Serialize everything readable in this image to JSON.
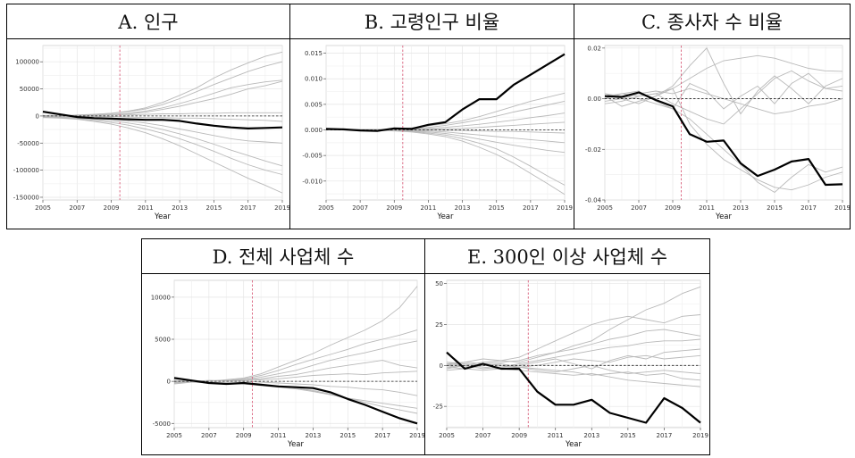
{
  "panels": [
    {
      "id": "A",
      "title": "A. 인구"
    },
    {
      "id": "B",
      "title": "B. 고령인구 비율"
    },
    {
      "id": "C",
      "title": "C. 종사자 수 비율"
    },
    {
      "id": "D",
      "title": "D. 전체 사업체 수"
    },
    {
      "id": "E",
      "title": "E. 300인 이상 사업체 수"
    }
  ],
  "chart_data": [
    {
      "type": "line",
      "title": "A. 인구",
      "xlabel": "Year",
      "ylabel": "",
      "xlim": [
        2005,
        2019
      ],
      "ylim": [
        -155000,
        130000
      ],
      "xticks": [
        2005,
        2007,
        2009,
        2011,
        2013,
        2015,
        2017,
        2019
      ],
      "yticks": [
        100000,
        50000,
        0,
        -50000,
        -100000,
        -150000
      ],
      "ytick_labels": [
        "100000",
        "50000",
        "0",
        "-50000",
        "-100000",
        "-150000"
      ],
      "vline": 2009.5,
      "hline": 0,
      "x": [
        2005,
        2006,
        2007,
        2008,
        2009,
        2010,
        2011,
        2012,
        2013,
        2014,
        2015,
        2016,
        2017,
        2018,
        2019
      ],
      "main": [
        8000,
        3000,
        -2000,
        -4000,
        -5000,
        -6000,
        -7000,
        -7000,
        -9000,
        -14000,
        -18000,
        -21000,
        -23000,
        -22000,
        -21000
      ],
      "others": [
        [
          -3000,
          -1000,
          2000,
          3000,
          5000,
          9000,
          15000,
          25000,
          38000,
          52000,
          70000,
          85000,
          98000,
          110000,
          118000
        ],
        [
          -2000,
          -1000,
          1000,
          3000,
          5000,
          8000,
          13000,
          21000,
          32000,
          45000,
          58000,
          70000,
          82000,
          92000,
          100000
        ],
        [
          -1000,
          0,
          1000,
          2000,
          3000,
          5000,
          9000,
          15000,
          23000,
          32000,
          42000,
          52000,
          58000,
          63000,
          66000
        ],
        [
          0,
          1000,
          1000,
          2000,
          3000,
          4000,
          7000,
          12000,
          18000,
          25000,
          32000,
          40000,
          50000,
          56000,
          64000
        ],
        [
          1000,
          1000,
          1000,
          1000,
          2000,
          2000,
          3000,
          4000,
          4000,
          5000,
          5000,
          6000,
          6000,
          6000,
          6000
        ],
        [
          0,
          0,
          -1000,
          -1000,
          -1000,
          -2000,
          -3000,
          -3000,
          -4000,
          -4000,
          -5000,
          -6000,
          -7000,
          -8000,
          -10000
        ],
        [
          -2000,
          -2000,
          -3000,
          -4000,
          -6000,
          -9000,
          -13000,
          -18000,
          -24000,
          -30000,
          -36000,
          -42000,
          -46000,
          -48000,
          -50000
        ],
        [
          -1000,
          -2000,
          -4000,
          -6000,
          -9000,
          -13000,
          -18000,
          -25000,
          -33000,
          -42000,
          -52000,
          -63000,
          -73000,
          -83000,
          -92000
        ],
        [
          -2000,
          -3000,
          -5000,
          -8000,
          -12000,
          -17000,
          -24000,
          -32000,
          -42000,
          -53000,
          -65000,
          -78000,
          -90000,
          -100000,
          -108000
        ],
        [
          -3000,
          -4000,
          -6000,
          -10000,
          -15000,
          -22000,
          -31000,
          -42000,
          -55000,
          -70000,
          -85000,
          -100000,
          -115000,
          -128000,
          -142000
        ]
      ]
    },
    {
      "type": "line",
      "title": "B. 고령인구 비율",
      "xlabel": "Year",
      "ylabel": "",
      "xlim": [
        2005,
        2019
      ],
      "ylim": [
        -0.0137,
        0.0165
      ],
      "xticks": [
        2005,
        2007,
        2009,
        2011,
        2013,
        2015,
        2017,
        2019
      ],
      "yticks": [
        0.015,
        0.01,
        0.005,
        0,
        -0.005,
        -0.01
      ],
      "ytick_labels": [
        "0.015",
        "0.010",
        "0.005",
        "0.000",
        "-0.005",
        "-0.010"
      ],
      "vline": 2009.5,
      "hline": 0,
      "x": [
        2005,
        2006,
        2007,
        2008,
        2009,
        2010,
        2011,
        2012,
        2013,
        2014,
        2015,
        2016,
        2017,
        2018,
        2019
      ],
      "main": [
        0.0002,
        0.0001,
        -0.0001,
        -0.0002,
        0.0003,
        0.0002,
        0.001,
        0.0015,
        0.004,
        0.006,
        0.006,
        0.0088,
        0.0108,
        0.0128,
        0.0148
      ],
      "others": [
        [
          0.0001,
          0.0001,
          0.0001,
          0.0001,
          0.0002,
          0.0004,
          0.0008,
          0.0012,
          0.0018,
          0.0026,
          0.0036,
          0.0046,
          0.0056,
          0.0064,
          0.0072
        ],
        [
          0.0001,
          0.0001,
          0,
          0,
          0.0001,
          0.0002,
          0.0005,
          0.0009,
          0.0014,
          0.002,
          0.0027,
          0.0035,
          0.0042,
          0.0049,
          0.0056
        ],
        [
          0.0001,
          0,
          0,
          0,
          0.0001,
          0.0001,
          0.0003,
          0.0005,
          0.0008,
          0.0011,
          0.0015,
          0.0019,
          0.0024,
          0.0028,
          0.0033
        ],
        [
          0,
          0,
          0,
          0,
          0,
          0,
          0.0001,
          0.0002,
          0.0003,
          0.0005,
          0.0007,
          0.0009,
          0.0011,
          0.0013,
          0.0015
        ],
        [
          0.0001,
          0.0001,
          0.0001,
          0,
          0,
          0,
          0,
          -0.0001,
          -0.0001,
          -0.0002,
          -0.0003,
          -0.0003,
          -0.0004,
          -0.0005,
          -0.0006
        ],
        [
          0,
          0,
          0,
          0,
          0,
          -0.0001,
          -0.0002,
          -0.0004,
          -0.0007,
          -0.001,
          -0.0013,
          -0.0016,
          -0.0019,
          -0.0022,
          -0.0025
        ],
        [
          0,
          0,
          0,
          0,
          -0.0001,
          -0.0002,
          -0.0004,
          -0.0007,
          -0.0012,
          -0.0018,
          -0.0024,
          -0.003,
          -0.0035,
          -0.004,
          -0.0044
        ],
        [
          0,
          0,
          0,
          0,
          -0.0001,
          -0.0003,
          -0.0006,
          -0.001,
          -0.0017,
          -0.0026,
          -0.0037,
          -0.0053,
          -0.0071,
          -0.009,
          -0.0108
        ],
        [
          0,
          0,
          0,
          -0.0001,
          -0.0002,
          -0.0004,
          -0.0008,
          -0.0013,
          -0.0022,
          -0.0034,
          -0.0048,
          -0.0065,
          -0.0085,
          -0.0105,
          -0.0126
        ]
      ]
    },
    {
      "type": "line",
      "title": "C. 종사자 수 비율",
      "xlabel": "Year",
      "ylabel": "",
      "xlim": [
        2005,
        2019
      ],
      "ylim": [
        -0.04,
        0.021
      ],
      "xticks": [
        2005,
        2007,
        2009,
        2011,
        2013,
        2015,
        2017,
        2019
      ],
      "yticks": [
        0.02,
        0,
        -0.02,
        -0.04
      ],
      "ytick_labels": [
        "0.02",
        "0.00",
        "-0.02",
        "-0.04"
      ],
      "vline": 2009.5,
      "hline": 0,
      "x": [
        2005,
        2006,
        2007,
        2008,
        2009,
        2010,
        2011,
        2012,
        2013,
        2014,
        2015,
        2016,
        2017,
        2018,
        2019
      ],
      "main": [
        0.001,
        0.0007,
        0.0025,
        -0.0005,
        -0.003,
        -0.014,
        -0.017,
        -0.0165,
        -0.0255,
        -0.0305,
        -0.028,
        -0.0248,
        -0.0238,
        -0.034,
        -0.0338
      ],
      "others": [
        [
          0.001,
          0.002,
          0.001,
          0.002,
          0.004,
          0.008,
          0.012,
          0.015,
          0.016,
          0.017,
          0.016,
          0.014,
          0.012,
          0.011,
          0.0108
        ],
        [
          0.002,
          0,
          -0.002,
          0.001,
          0.005,
          0.013,
          0.02,
          0.006,
          -0.006,
          0.003,
          0.009,
          0.004,
          -0.002,
          0.005,
          0.008
        ],
        [
          0,
          0.002,
          0.003,
          -0.001,
          -0.004,
          0.006,
          0.003,
          -0.004,
          0.001,
          0.005,
          -0.002,
          0.006,
          0.01,
          0.004,
          0.005
        ],
        [
          -0.002,
          -0.001,
          0.001,
          0.002,
          -0.002,
          -0.005,
          -0.008,
          -0.01,
          -0.004,
          0.002,
          0.008,
          0.011,
          0.007,
          0.004,
          0.003
        ],
        [
          0.001,
          -0.003,
          -0.001,
          0.001,
          0.004,
          -0.01,
          -0.018,
          -0.024,
          -0.028,
          -0.032,
          -0.035,
          -0.036,
          -0.034,
          -0.031,
          -0.029
        ],
        [
          0.002,
          0.001,
          0,
          -0.002,
          -0.004,
          -0.008,
          -0.014,
          -0.02,
          -0.026,
          -0.033,
          -0.037,
          -0.031,
          -0.026,
          -0.029,
          -0.027
        ],
        [
          -0.001,
          0,
          0.002,
          0.003,
          0.002,
          0.004,
          0.002,
          0,
          -0.002,
          -0.004,
          -0.006,
          -0.005,
          -0.003,
          -0.002,
          0
        ]
      ]
    },
    {
      "type": "line",
      "title": "D. 전체 사업체 수",
      "xlabel": "Year",
      "ylabel": "",
      "xlim": [
        2005,
        2019
      ],
      "ylim": [
        -5500,
        12000
      ],
      "xticks": [
        2005,
        2007,
        2009,
        2011,
        2013,
        2015,
        2017,
        2019
      ],
      "yticks": [
        10000,
        5000,
        0,
        -5000
      ],
      "ytick_labels": [
        "10000",
        "5000",
        "0",
        "-5000"
      ],
      "vline": 2009.5,
      "hline": 0,
      "x": [
        2005,
        2006,
        2007,
        2008,
        2009,
        2010,
        2011,
        2012,
        2013,
        2014,
        2015,
        2016,
        2017,
        2018,
        2019
      ],
      "main": [
        400,
        100,
        -200,
        -300,
        -200,
        -400,
        -600,
        -700,
        -800,
        -1300,
        -2100,
        -2800,
        -3600,
        -4400,
        -5000
      ],
      "others": [
        [
          -300,
          -100,
          0,
          200,
          400,
          900,
          1700,
          2500,
          3300,
          4300,
          5200,
          6100,
          7200,
          8800,
          11300
        ],
        [
          -200,
          -100,
          0,
          100,
          300,
          700,
          1300,
          2000,
          2600,
          3200,
          3800,
          4500,
          5000,
          5500,
          6100
        ],
        [
          0,
          -100,
          0,
          100,
          200,
          500,
          900,
          1300,
          1900,
          2500,
          3000,
          3400,
          3900,
          4400,
          4800
        ],
        [
          100,
          0,
          100,
          100,
          200,
          300,
          600,
          800,
          1200,
          1600,
          1900,
          2200,
          2500,
          1900,
          1600
        ],
        [
          -100,
          0,
          100,
          0,
          100,
          200,
          300,
          500,
          700,
          800,
          900,
          800,
          1000,
          1100,
          1200
        ],
        [
          0,
          0,
          0,
          0,
          0,
          -100,
          -200,
          -300,
          -400,
          -600,
          -700,
          -900,
          -1000,
          -1300,
          -1700
        ],
        [
          0,
          -100,
          -100,
          -200,
          -300,
          -500,
          -700,
          -900,
          -1200,
          -1600,
          -2000,
          -2300,
          -2600,
          -2900,
          -3200
        ],
        [
          -100,
          -100,
          -200,
          -200,
          -300,
          -400,
          -600,
          -800,
          -1100,
          -1500,
          -2000,
          -2500,
          -3000,
          -3400,
          -3800
        ]
      ]
    },
    {
      "type": "line",
      "title": "E. 300인 이상 사업체 수",
      "xlabel": "Year",
      "ylabel": "",
      "xlim": [
        2005,
        2019
      ],
      "ylim": [
        -38,
        52
      ],
      "xticks": [
        2005,
        2007,
        2009,
        2011,
        2013,
        2015,
        2017,
        2019
      ],
      "yticks": [
        50,
        25,
        0,
        -25
      ],
      "ytick_labels": [
        "50",
        "25",
        "0",
        "-25"
      ],
      "vline": 2009.5,
      "hline": 0,
      "x": [
        2005,
        2006,
        2007,
        2008,
        2009,
        2010,
        2011,
        2012,
        2013,
        2014,
        2015,
        2016,
        2017,
        2018,
        2019
      ],
      "main": [
        8,
        -2,
        1,
        -2,
        -2,
        -16,
        -24,
        -24,
        -21,
        -29,
        -32,
        -35,
        -20,
        -26,
        -35
      ],
      "others": [
        [
          -2,
          0,
          2,
          3,
          5,
          10,
          15,
          20,
          25,
          28,
          30,
          28,
          26,
          30,
          31
        ],
        [
          1,
          2,
          4,
          3,
          2,
          5,
          8,
          12,
          15,
          22,
          28,
          34,
          38,
          44,
          48
        ],
        [
          0,
          -1,
          1,
          2,
          3,
          6,
          8,
          10,
          13,
          16,
          18,
          21,
          22,
          20,
          18
        ],
        [
          -1,
          0,
          -2,
          -1,
          1,
          3,
          5,
          7,
          9,
          11,
          12,
          14,
          15,
          15,
          16
        ],
        [
          2,
          1,
          0,
          -1,
          0,
          2,
          4,
          1,
          -2,
          3,
          6,
          4,
          8,
          9,
          10
        ],
        [
          -3,
          -2,
          0,
          1,
          -1,
          -3,
          -4,
          -2,
          0,
          -3,
          -5,
          -4,
          -3,
          -4,
          -5
        ],
        [
          1,
          0,
          -1,
          -2,
          -3,
          -4,
          -5,
          -6,
          -5,
          -7,
          -9,
          -10,
          -11,
          -12,
          -13
        ],
        [
          0,
          2,
          1,
          0,
          -1,
          0,
          2,
          4,
          3,
          2,
          5,
          6,
          4,
          5,
          6
        ],
        [
          -1,
          -2,
          -3,
          -2,
          -1,
          -2,
          -3,
          -4,
          -6,
          -5,
          -4,
          -6,
          -5,
          -8,
          -9
        ]
      ]
    }
  ]
}
